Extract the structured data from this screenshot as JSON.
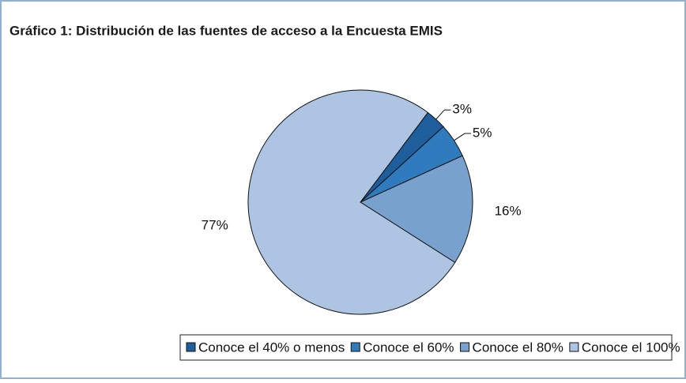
{
  "chart_data": {
    "type": "pie",
    "title": "Gráfico 1: Distribución de las fuentes de acceso a la Encuesta EMIS",
    "categories": [
      "Conoce el 40% o menos",
      "Conoce el 60%",
      "Conoce el 80%",
      "Conoce el 100%"
    ],
    "values": [
      3,
      5,
      16,
      77
    ],
    "value_labels": [
      "3%",
      "5%",
      "16%",
      "77%"
    ],
    "colors": [
      "#1f5e9c",
      "#2f7bbd",
      "#78a1cd",
      "#adc5e2"
    ],
    "legend": "bottom"
  }
}
